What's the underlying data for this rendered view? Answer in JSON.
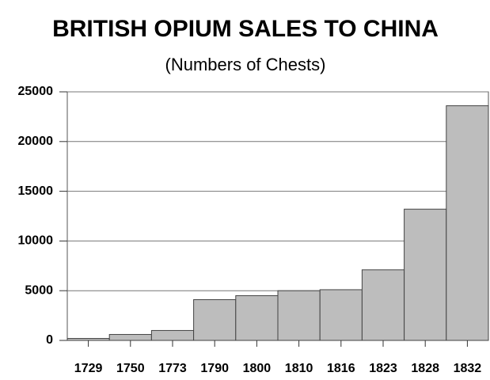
{
  "chart_data": {
    "type": "bar",
    "title": "BRITISH OPIUM SALES TO CHINA",
    "subtitle": "(Numbers of Chests)",
    "categories": [
      "1729",
      "1750",
      "1773",
      "1790",
      "1800",
      "1810",
      "1816",
      "1823",
      "1828",
      "1832"
    ],
    "values": [
      200,
      600,
      1000,
      4100,
      4500,
      5000,
      5100,
      7100,
      13200,
      23600
    ],
    "color": "#bdbdbd",
    "ylim": [
      0,
      25000
    ],
    "yticks": [
      0,
      5000,
      10000,
      15000,
      20000,
      25000
    ],
    "grid": true
  }
}
